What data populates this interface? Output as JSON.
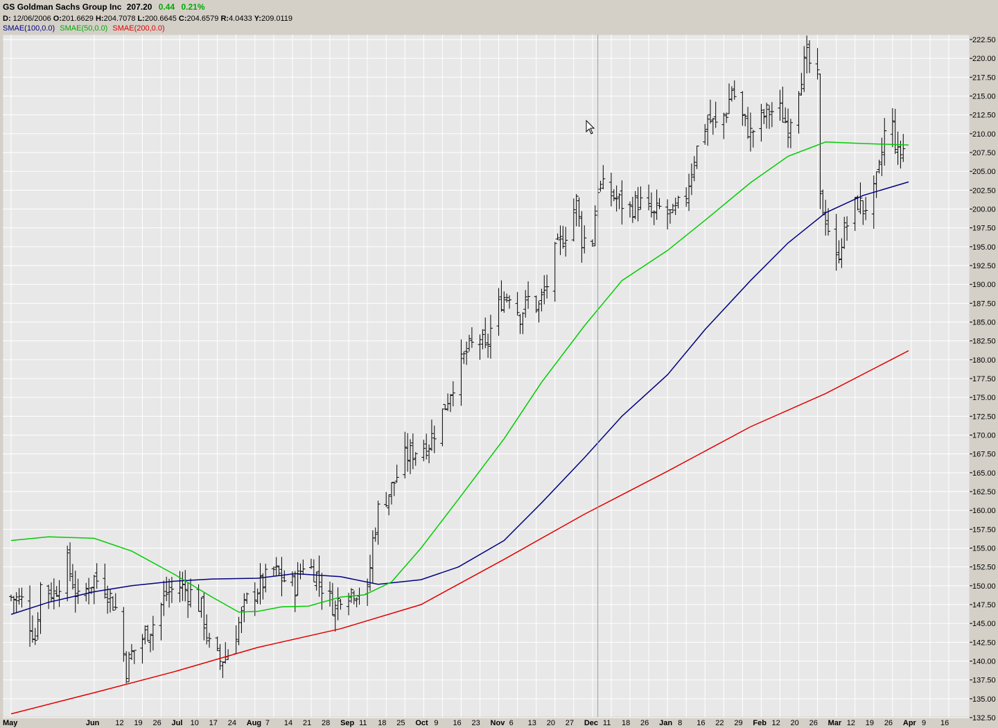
{
  "header": {
    "symbol": "GS",
    "name": "Goldman Sachs Group Inc",
    "last": "207.20",
    "change": "0.44",
    "change_pct": "0.21%",
    "info": {
      "date_label": "D:",
      "date": "12/06/2006",
      "open_label": "O:",
      "open": "201.6629",
      "high_label": "H:",
      "high": "204.7078",
      "low_label": "L:",
      "low": "200.6645",
      "close_label": "C:",
      "close": "204.6579",
      "range_label": "R:",
      "range": "4.0433",
      "y_label": "Y:",
      "y": "209.0119"
    },
    "legend": [
      {
        "label": "SMAE(100,0.0)",
        "color": "#000080"
      },
      {
        "label": "SMAE(50,0.0)",
        "color": "#00cc00"
      },
      {
        "label": "SMAE(200,0.0)",
        "color": "#e00000"
      }
    ]
  },
  "chart_data": {
    "type": "ohlc",
    "title": "GS Goldman Sachs Group Inc",
    "ylim": [
      132.5,
      222.5
    ],
    "y_ticks": [
      "132.50",
      "135.00",
      "137.50",
      "140.00",
      "142.50",
      "145.00",
      "147.50",
      "150.00",
      "152.50",
      "155.00",
      "157.50",
      "160.00",
      "162.50",
      "165.00",
      "167.50",
      "170.00",
      "172.50",
      "175.00",
      "177.50",
      "180.00",
      "182.50",
      "185.00",
      "187.50",
      "190.00",
      "192.50",
      "195.00",
      "197.50",
      "200.00",
      "202.50",
      "205.00",
      "207.50",
      "210.00",
      "212.50",
      "215.00",
      "217.50",
      "220.00",
      "222.50"
    ],
    "x_ticks": [
      {
        "date": "2006-05-01",
        "label": "May",
        "bold": true
      },
      {
        "date": "2006-06-01",
        "label": "Jun",
        "bold": true
      },
      {
        "date": "2006-06-12",
        "label": "12"
      },
      {
        "date": "2006-06-19",
        "label": "19"
      },
      {
        "date": "2006-06-26",
        "label": "26"
      },
      {
        "date": "2006-07-03",
        "label": "Jul",
        "bold": true
      },
      {
        "date": "2006-07-10",
        "label": "10"
      },
      {
        "date": "2006-07-17",
        "label": "17"
      },
      {
        "date": "2006-07-24",
        "label": "24"
      },
      {
        "date": "2006-07-31",
        "label": "Aug",
        "bold": true
      },
      {
        "date": "2006-08-07",
        "label": "7"
      },
      {
        "date": "2006-08-14",
        "label": "14"
      },
      {
        "date": "2006-08-21",
        "label": "21"
      },
      {
        "date": "2006-08-28",
        "label": "28"
      },
      {
        "date": "2006-09-04",
        "label": "Sep",
        "bold": true
      },
      {
        "date": "2006-09-11",
        "label": "11"
      },
      {
        "date": "2006-09-18",
        "label": "18"
      },
      {
        "date": "2006-09-25",
        "label": "25"
      },
      {
        "date": "2006-10-02",
        "label": "Oct",
        "bold": true
      },
      {
        "date": "2006-10-09",
        "label": "9"
      },
      {
        "date": "2006-10-16",
        "label": "16"
      },
      {
        "date": "2006-10-23",
        "label": "23"
      },
      {
        "date": "2006-10-30",
        "label": "Nov",
        "bold": true
      },
      {
        "date": "2006-11-06",
        "label": "6"
      },
      {
        "date": "2006-11-13",
        "label": "13"
      },
      {
        "date": "2006-11-20",
        "label": "20"
      },
      {
        "date": "2006-11-27",
        "label": "27"
      },
      {
        "date": "2006-12-04",
        "label": "Dec",
        "bold": true
      },
      {
        "date": "2006-12-11",
        "label": "11"
      },
      {
        "date": "2006-12-18",
        "label": "18"
      },
      {
        "date": "2006-12-25",
        "label": "26"
      },
      {
        "date": "2007-01-01",
        "label": "Jan",
        "bold": true
      },
      {
        "date": "2007-01-08",
        "label": "8"
      },
      {
        "date": "2007-01-15",
        "label": "16"
      },
      {
        "date": "2007-01-22",
        "label": "22"
      },
      {
        "date": "2007-01-29",
        "label": "29"
      },
      {
        "date": "2007-02-05",
        "label": "Feb",
        "bold": true
      },
      {
        "date": "2007-02-12",
        "label": "12"
      },
      {
        "date": "2007-02-19",
        "label": "20"
      },
      {
        "date": "2007-02-26",
        "label": "26"
      },
      {
        "date": "2007-03-05",
        "label": "Mar",
        "bold": true
      },
      {
        "date": "2007-03-12",
        "label": "12"
      },
      {
        "date": "2007-03-19",
        "label": "19"
      },
      {
        "date": "2007-03-26",
        "label": "26"
      },
      {
        "date": "2007-04-02",
        "label": "Apr",
        "bold": true
      },
      {
        "date": "2007-04-09",
        "label": "9"
      },
      {
        "date": "2007-04-16",
        "label": "16"
      }
    ],
    "cursor_date": "2006-12-06",
    "price_path": [
      [
        "2006-05-01",
        148.5
      ],
      [
        "2006-05-05",
        148
      ],
      [
        "2006-05-10",
        143
      ],
      [
        "2006-05-12",
        150
      ],
      [
        "2006-05-17",
        149
      ],
      [
        "2006-05-22",
        153
      ],
      [
        "2006-05-26",
        148
      ],
      [
        "2006-06-01",
        151
      ],
      [
        "2006-06-05",
        150
      ],
      [
        "2006-06-09",
        147
      ],
      [
        "2006-06-13",
        139
      ],
      [
        "2006-06-15",
        141
      ],
      [
        "2006-06-19",
        143
      ],
      [
        "2006-06-23",
        145
      ],
      [
        "2006-06-28",
        149
      ],
      [
        "2006-07-03",
        150
      ],
      [
        "2006-07-07",
        149
      ],
      [
        "2006-07-11",
        147
      ],
      [
        "2006-07-14",
        142
      ],
      [
        "2006-07-18",
        140
      ],
      [
        "2006-07-21",
        141
      ],
      [
        "2006-07-25",
        145
      ],
      [
        "2006-07-28",
        148
      ],
      [
        "2006-08-02",
        150
      ],
      [
        "2006-08-07",
        152
      ],
      [
        "2006-08-10",
        151
      ],
      [
        "2006-08-15",
        150
      ],
      [
        "2006-08-18",
        153
      ],
      [
        "2006-08-22",
        152
      ],
      [
        "2006-08-25",
        150
      ],
      [
        "2006-08-30",
        147
      ],
      [
        "2006-09-01",
        149
      ],
      [
        "2006-09-06",
        149.5
      ],
      [
        "2006-09-11",
        149
      ],
      [
        "2006-09-13",
        156
      ],
      [
        "2006-09-15",
        160
      ],
      [
        "2006-09-20",
        163
      ],
      [
        "2006-09-25",
        167
      ],
      [
        "2006-09-29",
        168
      ],
      [
        "2006-10-04",
        169
      ],
      [
        "2006-10-09",
        173
      ],
      [
        "2006-10-13",
        177
      ],
      [
        "2006-10-18",
        181
      ],
      [
        "2006-10-23",
        183
      ],
      [
        "2006-10-25",
        181
      ],
      [
        "2006-10-27",
        184
      ],
      [
        "2006-10-31",
        188
      ],
      [
        "2006-11-03",
        189
      ],
      [
        "2006-11-07",
        186
      ],
      [
        "2006-11-10",
        188
      ],
      [
        "2006-11-14",
        187
      ],
      [
        "2006-11-17",
        190
      ],
      [
        "2006-11-20",
        194
      ],
      [
        "2006-11-24",
        197
      ],
      [
        "2006-11-28",
        201
      ],
      [
        "2006-11-30",
        196
      ],
      [
        "2006-12-04",
        196
      ],
      [
        "2006-12-06",
        203
      ],
      [
        "2006-12-11",
        202
      ],
      [
        "2006-12-14",
        201
      ],
      [
        "2006-12-18",
        200
      ],
      [
        "2006-12-21",
        201
      ],
      [
        "2006-12-27",
        199
      ],
      [
        "2006-12-29",
        200
      ],
      [
        "2007-01-03",
        199
      ],
      [
        "2007-01-08",
        202
      ],
      [
        "2007-01-11",
        207
      ],
      [
        "2007-01-16",
        212
      ],
      [
        "2007-01-19",
        211
      ],
      [
        "2007-01-23",
        213
      ],
      [
        "2007-01-25",
        216
      ],
      [
        "2007-01-29",
        212
      ],
      [
        "2007-02-01",
        210
      ],
      [
        "2007-02-05",
        212
      ],
      [
        "2007-02-08",
        213
      ],
      [
        "2007-02-12",
        213
      ],
      [
        "2007-02-15",
        211
      ],
      [
        "2007-02-20",
        218
      ],
      [
        "2007-02-22",
        220
      ],
      [
        "2007-02-26",
        217
      ],
      [
        "2007-02-27",
        201
      ],
      [
        "2007-03-01",
        199
      ],
      [
        "2007-03-05",
        193
      ],
      [
        "2007-03-07",
        196
      ],
      [
        "2007-03-09",
        198
      ],
      [
        "2007-03-13",
        201
      ],
      [
        "2007-03-15",
        200
      ],
      [
        "2007-03-19",
        202
      ],
      [
        "2007-03-21",
        205
      ],
      [
        "2007-03-23",
        210
      ],
      [
        "2007-03-26",
        211
      ],
      [
        "2007-03-28",
        207
      ],
      [
        "2007-03-30",
        208
      ]
    ],
    "series": [
      {
        "name": "SMAE(100,0.0)",
        "color": "#000080",
        "points": [
          [
            "2006-05-01",
            146.2
          ],
          [
            "2006-05-15",
            147.8
          ],
          [
            "2006-06-01",
            149.2
          ],
          [
            "2006-06-15",
            150
          ],
          [
            "2006-07-01",
            150.6
          ],
          [
            "2006-07-15",
            150.9
          ],
          [
            "2006-08-01",
            151
          ],
          [
            "2006-08-15",
            151.6
          ],
          [
            "2006-09-01",
            151.2
          ],
          [
            "2006-09-15",
            150.2
          ],
          [
            "2006-10-01",
            150.8
          ],
          [
            "2006-10-15",
            152.5
          ],
          [
            "2006-11-01",
            156
          ],
          [
            "2006-11-15",
            161
          ],
          [
            "2006-12-01",
            167
          ],
          [
            "2006-12-15",
            172.5
          ],
          [
            "2007-01-01",
            178
          ],
          [
            "2007-01-15",
            184
          ],
          [
            "2007-02-01",
            190.5
          ],
          [
            "2007-02-15",
            195.5
          ],
          [
            "2007-03-01",
            199.5
          ],
          [
            "2007-03-15",
            201.8
          ],
          [
            "2007-04-01",
            203.6
          ]
        ]
      },
      {
        "name": "SMAE(50,0.0)",
        "color": "#00cc00",
        "points": [
          [
            "2006-05-01",
            156
          ],
          [
            "2006-05-15",
            156.5
          ],
          [
            "2006-06-01",
            156.3
          ],
          [
            "2006-06-15",
            154.6
          ],
          [
            "2006-07-01",
            151.5
          ],
          [
            "2006-07-15",
            148.5
          ],
          [
            "2006-07-25",
            146.5
          ],
          [
            "2006-08-01",
            146.6
          ],
          [
            "2006-08-10",
            147.2
          ],
          [
            "2006-08-20",
            147.3
          ],
          [
            "2006-09-01",
            148.5
          ],
          [
            "2006-09-10",
            148.8
          ],
          [
            "2006-09-20",
            150.5
          ],
          [
            "2006-10-01",
            155
          ],
          [
            "2006-10-15",
            161.5
          ],
          [
            "2006-11-01",
            169.5
          ],
          [
            "2006-11-15",
            177
          ],
          [
            "2006-12-01",
            184.5
          ],
          [
            "2006-12-15",
            190.5
          ],
          [
            "2007-01-01",
            194.5
          ],
          [
            "2007-01-15",
            198.5
          ],
          [
            "2007-02-01",
            203.5
          ],
          [
            "2007-02-15",
            207
          ],
          [
            "2007-03-01",
            208.9
          ],
          [
            "2007-03-15",
            208.7
          ],
          [
            "2007-04-01",
            208.5
          ]
        ]
      },
      {
        "name": "SMAE(200,0.0)",
        "color": "#e00000",
        "points": [
          [
            "2006-05-01",
            133
          ],
          [
            "2006-06-01",
            135.8
          ],
          [
            "2006-07-01",
            138.6
          ],
          [
            "2006-08-01",
            141.8
          ],
          [
            "2006-09-01",
            144.3
          ],
          [
            "2006-10-01",
            147.5
          ],
          [
            "2006-11-01",
            153.5
          ],
          [
            "2006-12-01",
            159.5
          ],
          [
            "2007-01-01",
            165.2
          ],
          [
            "2007-02-01",
            171.1
          ],
          [
            "2007-03-01",
            175.5
          ],
          [
            "2007-04-01",
            181.2
          ]
        ]
      }
    ]
  }
}
